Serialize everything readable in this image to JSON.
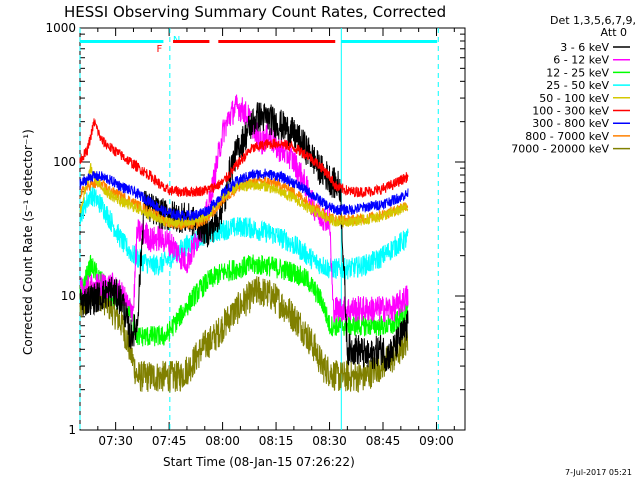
{
  "chart_data": {
    "type": "line",
    "title": "HESSI Observing Summary Count Rates, Corrected",
    "xlabel": "Start Time (08-Jan-15 07:26:22)",
    "ylabel": "Corrected Count Rate (s⁻¹ detector⁻¹)",
    "y_scale": "log",
    "ylim": [
      1,
      1000
    ],
    "xlim_min": [
      -6,
      102
    ],
    "x_ticks": [
      {
        "m": 4,
        "label": "07:30"
      },
      {
        "m": 19,
        "label": "07:45"
      },
      {
        "m": 34,
        "label": "08:00"
      },
      {
        "m": 49,
        "label": "08:15"
      },
      {
        "m": 64,
        "label": "08:30"
      },
      {
        "m": 79,
        "label": "08:45"
      },
      {
        "m": 94,
        "label": "09:00"
      }
    ],
    "y_ticks": [
      {
        "v": 1,
        "label": "1"
      },
      {
        "v": 10,
        "label": "10"
      },
      {
        "v": 100,
        "label": "100"
      },
      {
        "v": 1000,
        "label": "1000"
      }
    ],
    "legend_header": [
      "Det 1,3,5,6,7,9,",
      "Att 0"
    ],
    "legend_position": "right",
    "series": [
      {
        "name": "3 - 6 keV",
        "color": "#000000",
        "points": [
          [
            -6,
            9
          ],
          [
            0,
            10
          ],
          [
            3,
            11
          ],
          [
            6,
            9
          ],
          [
            8,
            5
          ],
          [
            10,
            6
          ],
          [
            12,
            48
          ],
          [
            16,
            42
          ],
          [
            18,
            40
          ],
          [
            22,
            39
          ],
          [
            25,
            37
          ],
          [
            28,
            33
          ],
          [
            30,
            30
          ],
          [
            32,
            35
          ],
          [
            33,
            40
          ],
          [
            35,
            55
          ],
          [
            36,
            85
          ],
          [
            38,
            120
          ],
          [
            40,
            150
          ],
          [
            42,
            190
          ],
          [
            44,
            220
          ],
          [
            47,
            210
          ],
          [
            50,
            190
          ],
          [
            53,
            170
          ],
          [
            55,
            150
          ],
          [
            57,
            130
          ],
          [
            59,
            110
          ],
          [
            61,
            90
          ],
          [
            63,
            80
          ],
          [
            65,
            70
          ],
          [
            67,
            65
          ],
          [
            69,
            4
          ],
          [
            72,
            4
          ],
          [
            75,
            3.5
          ],
          [
            78,
            4
          ],
          [
            79,
            4
          ],
          [
            80,
            3.5
          ],
          [
            82,
            4
          ],
          [
            84,
            5
          ],
          [
            86,
            6
          ]
        ],
        "jitter": 0.12
      },
      {
        "name": "6 - 12 keV",
        "color": "#ff00ff",
        "points": [
          [
            -6,
            11
          ],
          [
            0,
            12
          ],
          [
            3,
            12
          ],
          [
            6,
            10
          ],
          [
            8,
            8
          ],
          [
            9,
            8
          ],
          [
            10,
            30
          ],
          [
            12,
            30
          ],
          [
            14,
            26
          ],
          [
            16,
            27
          ],
          [
            18,
            26
          ],
          [
            20,
            24
          ],
          [
            22,
            20
          ],
          [
            24,
            18
          ],
          [
            26,
            23
          ],
          [
            28,
            32
          ],
          [
            30,
            45
          ],
          [
            32,
            85
          ],
          [
            34,
            165
          ],
          [
            36,
            220
          ],
          [
            38,
            260
          ],
          [
            40,
            240
          ],
          [
            42,
            200
          ],
          [
            44,
            150
          ],
          [
            45,
            140
          ],
          [
            47,
            160
          ],
          [
            49,
            130
          ],
          [
            51,
            120
          ],
          [
            53,
            110
          ],
          [
            55,
            90
          ],
          [
            57,
            70
          ],
          [
            59,
            50
          ],
          [
            61,
            40
          ],
          [
            63,
            38
          ],
          [
            64,
            38
          ],
          [
            65,
            8
          ],
          [
            68,
            8
          ],
          [
            72,
            8
          ],
          [
            75,
            8
          ],
          [
            78,
            8
          ],
          [
            80,
            8
          ],
          [
            82,
            8
          ],
          [
            84,
            9
          ],
          [
            86,
            10
          ]
        ],
        "jitter": 0.1
      },
      {
        "name": "12 - 25 keV",
        "color": "#00ff00",
        "points": [
          [
            -6,
            10
          ],
          [
            -3,
            17
          ],
          [
            0,
            13
          ],
          [
            3,
            10
          ],
          [
            6,
            9
          ],
          [
            8,
            8
          ],
          [
            10,
            5
          ],
          [
            14,
            5
          ],
          [
            18,
            5
          ],
          [
            22,
            7
          ],
          [
            26,
            10
          ],
          [
            30,
            13
          ],
          [
            34,
            15
          ],
          [
            38,
            16
          ],
          [
            42,
            17
          ],
          [
            46,
            17
          ],
          [
            50,
            16
          ],
          [
            54,
            15
          ],
          [
            58,
            13
          ],
          [
            62,
            9
          ],
          [
            64,
            6
          ],
          [
            66,
            6
          ],
          [
            70,
            6
          ],
          [
            74,
            6
          ],
          [
            78,
            6
          ],
          [
            82,
            6
          ],
          [
            84,
            7
          ],
          [
            86,
            8
          ]
        ],
        "jitter": 0.08
      },
      {
        "name": "25 - 50 keV",
        "color": "#00ffff",
        "points": [
          [
            -6,
            40
          ],
          [
            -3,
            58
          ],
          [
            0,
            48
          ],
          [
            3,
            35
          ],
          [
            6,
            25
          ],
          [
            9,
            20
          ],
          [
            12,
            18
          ],
          [
            14,
            17
          ],
          [
            16,
            17
          ],
          [
            18,
            18
          ],
          [
            20,
            20
          ],
          [
            24,
            24
          ],
          [
            28,
            28
          ],
          [
            32,
            30
          ],
          [
            36,
            32
          ],
          [
            40,
            33
          ],
          [
            44,
            31
          ],
          [
            48,
            29
          ],
          [
            52,
            26
          ],
          [
            56,
            22
          ],
          [
            60,
            18
          ],
          [
            62,
            17
          ],
          [
            64,
            16
          ],
          [
            66,
            16
          ],
          [
            70,
            16
          ],
          [
            74,
            17
          ],
          [
            78,
            19
          ],
          [
            82,
            23
          ],
          [
            84,
            25
          ],
          [
            86,
            27
          ]
        ],
        "jitter": 0.08
      },
      {
        "name": "50 - 100 keV",
        "color": "#d4c800",
        "points": [
          [
            -6,
            42
          ],
          [
            -3,
            90
          ],
          [
            -1,
            70
          ],
          [
            2,
            58
          ],
          [
            6,
            50
          ],
          [
            10,
            45
          ],
          [
            14,
            40
          ],
          [
            18,
            36
          ],
          [
            22,
            35
          ],
          [
            26,
            36
          ],
          [
            30,
            40
          ],
          [
            34,
            55
          ],
          [
            38,
            65
          ],
          [
            42,
            67
          ],
          [
            46,
            66
          ],
          [
            50,
            60
          ],
          [
            54,
            54
          ],
          [
            58,
            45
          ],
          [
            62,
            40
          ],
          [
            64,
            37
          ],
          [
            66,
            36
          ],
          [
            70,
            36
          ],
          [
            74,
            37
          ],
          [
            78,
            39
          ],
          [
            82,
            42
          ],
          [
            84,
            44
          ],
          [
            86,
            46
          ]
        ],
        "jitter": 0.04
      },
      {
        "name": "100 - 300 keV",
        "color": "#ff0000",
        "points": [
          [
            -6,
            105
          ],
          [
            -4,
            120
          ],
          [
            -2,
            200
          ],
          [
            0,
            145
          ],
          [
            3,
            125
          ],
          [
            6,
            110
          ],
          [
            10,
            92
          ],
          [
            14,
            78
          ],
          [
            18,
            62
          ],
          [
            22,
            60
          ],
          [
            26,
            60
          ],
          [
            30,
            62
          ],
          [
            34,
            70
          ],
          [
            38,
            95
          ],
          [
            42,
            125
          ],
          [
            46,
            135
          ],
          [
            50,
            138
          ],
          [
            54,
            128
          ],
          [
            58,
            112
          ],
          [
            62,
            90
          ],
          [
            64,
            78
          ],
          [
            66,
            65
          ],
          [
            70,
            60
          ],
          [
            74,
            60
          ],
          [
            78,
            62
          ],
          [
            82,
            68
          ],
          [
            84,
            73
          ],
          [
            86,
            78
          ]
        ],
        "jitter": 0.04
      },
      {
        "name": "300 - 800 keV",
        "color": "#0000ff",
        "points": [
          [
            -6,
            68
          ],
          [
            -3,
            78
          ],
          [
            0,
            78
          ],
          [
            3,
            72
          ],
          [
            6,
            65
          ],
          [
            10,
            58
          ],
          [
            14,
            50
          ],
          [
            18,
            42
          ],
          [
            22,
            40
          ],
          [
            26,
            40
          ],
          [
            30,
            44
          ],
          [
            34,
            58
          ],
          [
            38,
            72
          ],
          [
            42,
            80
          ],
          [
            46,
            82
          ],
          [
            50,
            78
          ],
          [
            54,
            70
          ],
          [
            58,
            60
          ],
          [
            62,
            50
          ],
          [
            64,
            46
          ],
          [
            66,
            44
          ],
          [
            70,
            44
          ],
          [
            74,
            46
          ],
          [
            78,
            48
          ],
          [
            82,
            52
          ],
          [
            84,
            55
          ],
          [
            86,
            58
          ]
        ],
        "jitter": 0.04
      },
      {
        "name": "800 - 7000 keV",
        "color": "#ff8000",
        "points": [
          [
            -6,
            58
          ],
          [
            -3,
            68
          ],
          [
            0,
            68
          ],
          [
            3,
            60
          ],
          [
            6,
            55
          ],
          [
            10,
            48
          ],
          [
            14,
            42
          ],
          [
            18,
            36
          ],
          [
            22,
            34
          ],
          [
            26,
            34
          ],
          [
            30,
            38
          ],
          [
            34,
            52
          ],
          [
            38,
            64
          ],
          [
            42,
            70
          ],
          [
            46,
            72
          ],
          [
            50,
            68
          ],
          [
            54,
            60
          ],
          [
            58,
            50
          ],
          [
            62,
            42
          ],
          [
            64,
            39
          ],
          [
            66,
            37
          ],
          [
            70,
            37
          ],
          [
            74,
            38
          ],
          [
            78,
            40
          ],
          [
            82,
            43
          ],
          [
            84,
            46
          ],
          [
            86,
            48
          ]
        ],
        "jitter": 0.04
      },
      {
        "name": "7000 - 20000 keV",
        "color": "#808000",
        "points": [
          [
            -6,
            8
          ],
          [
            -3,
            10
          ],
          [
            0,
            10
          ],
          [
            3,
            8
          ],
          [
            6,
            6
          ],
          [
            8,
            4
          ],
          [
            10,
            2.5
          ],
          [
            14,
            2.5
          ],
          [
            18,
            2.5
          ],
          [
            22,
            2.5
          ],
          [
            25,
            3
          ],
          [
            28,
            4
          ],
          [
            32,
            5
          ],
          [
            36,
            7
          ],
          [
            40,
            9
          ],
          [
            44,
            11
          ],
          [
            48,
            10
          ],
          [
            52,
            8
          ],
          [
            56,
            6
          ],
          [
            60,
            4
          ],
          [
            62,
            3
          ],
          [
            66,
            2.5
          ],
          [
            70,
            2.5
          ],
          [
            74,
            2.5
          ],
          [
            78,
            3
          ],
          [
            82,
            3.5
          ],
          [
            84,
            4
          ],
          [
            86,
            5
          ]
        ],
        "jitter": 0.12
      }
    ],
    "attenuator_markers": [
      {
        "m": -6,
        "color": "#00ffff",
        "label": ""
      },
      {
        "m": 19.2,
        "color": "#00ffff",
        "label": "N"
      },
      {
        "m": 67.3,
        "color": "#00ffff",
        "label": ""
      },
      {
        "m": 94.5,
        "color": "#00ffff",
        "label": ""
      }
    ],
    "top_bars": [
      {
        "from": -6,
        "to": 17.4,
        "color": "#00ffff"
      },
      {
        "from": 20.1,
        "to": 30.3,
        "color": "#ff0000"
      },
      {
        "from": 32.8,
        "to": 65.6,
        "color": "#ff0000"
      },
      {
        "from": 67.3,
        "to": 94.2,
        "color": "#00ffff"
      }
    ],
    "flare_label": {
      "text": "F",
      "m": 18.0,
      "color": "#ff0000"
    }
  },
  "stamp": "7-Jul-2017 05:21"
}
